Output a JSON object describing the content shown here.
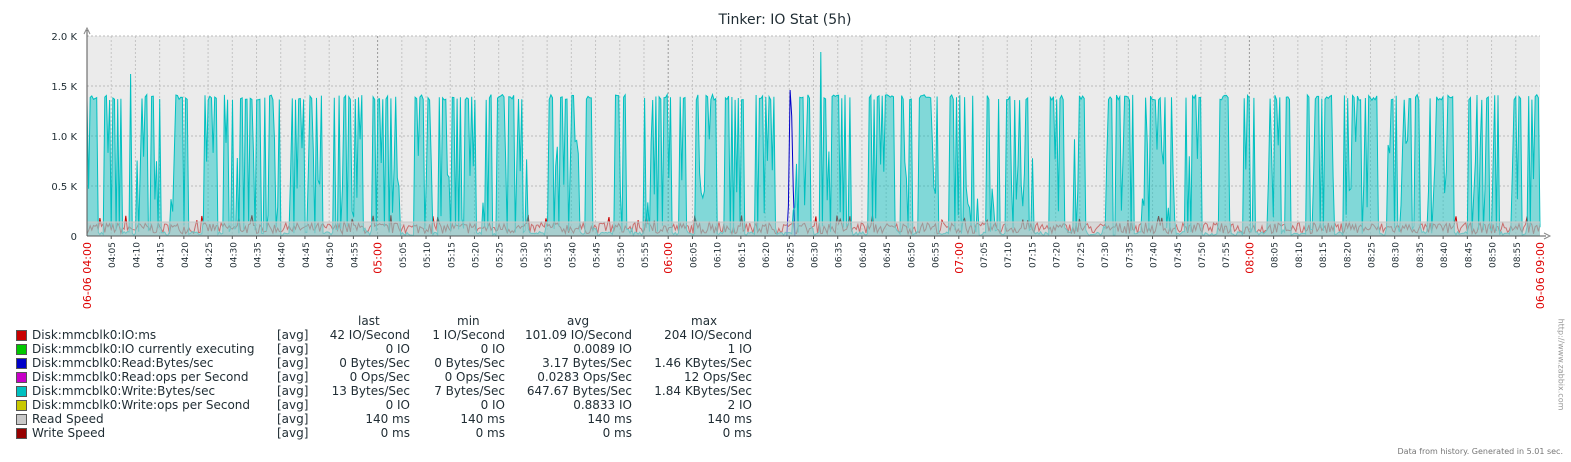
{
  "chart_data": {
    "type": "area",
    "title": "Tinker: IO Stat (5h)",
    "ylim": [
      0,
      2000
    ],
    "yticks": [
      "0",
      "0.5 K",
      "1.0 K",
      "1.5 K",
      "2.0 K"
    ],
    "x_start_label": "06-06 04:00",
    "x_end_label": "06-06 09:00",
    "xticks": [
      "04:05",
      "04:10",
      "04:15",
      "04:20",
      "04:25",
      "04:30",
      "04:35",
      "04:40",
      "04:45",
      "04:50",
      "04:55",
      "05:00",
      "05:05",
      "05:10",
      "05:15",
      "05:20",
      "05:25",
      "05:30",
      "05:35",
      "05:40",
      "05:45",
      "05:50",
      "05:55",
      "06:00",
      "06:05",
      "06:10",
      "06:15",
      "06:20",
      "06:25",
      "06:30",
      "06:35",
      "06:40",
      "06:45",
      "06:50",
      "06:55",
      "07:00",
      "07:05",
      "07:10",
      "07:15",
      "07:20",
      "07:25",
      "07:30",
      "07:35",
      "07:40",
      "07:45",
      "07:50",
      "07:55",
      "08:00",
      "08:05",
      "08:10",
      "08:15",
      "08:20",
      "08:25",
      "08:30",
      "08:35",
      "08:40",
      "08:45",
      "08:50",
      "08:55"
    ],
    "hour_ticks": [
      "05:00",
      "06:00",
      "07:00",
      "08:00"
    ],
    "series": [
      {
        "name": "Disk:mmcblk0:IO:ms",
        "color": "#c80000",
        "style": "line",
        "shape": "noise_low",
        "level": 110
      },
      {
        "name": "Disk:mmcblk0:IO currently executing",
        "color": "#00c800",
        "style": "line",
        "shape": "flat",
        "level": 0
      },
      {
        "name": "Disk:mmcblk0:Read:Bytes/sec",
        "color": "#0000c8",
        "style": "line",
        "shape": "spike",
        "peak": 1460,
        "at": "06:25"
      },
      {
        "name": "Disk:mmcblk0:Read:ops per Second",
        "color": "#c800c8",
        "style": "line",
        "shape": "flat",
        "level": 0
      },
      {
        "name": "Disk:mmcblk0:Write:Bytes/sec",
        "color": "#00c0c0",
        "style": "filled",
        "shape": "bursty",
        "typical_peak": 1400,
        "max": 1840
      },
      {
        "name": "Disk:mmcblk0:Write:ops per Second",
        "color": "#c8c800",
        "style": "line",
        "shape": "flat",
        "level": 0
      },
      {
        "name": "Read Speed",
        "color": "#c8c8c8",
        "style": "filled",
        "shape": "flat",
        "level": 140
      },
      {
        "name": "Write Speed",
        "color": "#960000",
        "style": "line",
        "shape": "flat",
        "level": 0
      }
    ]
  },
  "legend": {
    "headers": [
      "last",
      "min",
      "avg",
      "max"
    ],
    "rows": [
      {
        "name": "Disk:mmcblk0:IO:ms",
        "func": "[avg]",
        "last": "42 IO/Second",
        "min": "1 IO/Second",
        "avg": "101.09 IO/Second",
        "max": "204 IO/Second",
        "color": "#c80000"
      },
      {
        "name": "Disk:mmcblk0:IO currently executing",
        "func": "[avg]",
        "last": "0 IO",
        "min": "0 IO",
        "avg": "0.0089 IO",
        "max": "1 IO",
        "color": "#00c800"
      },
      {
        "name": "Disk:mmcblk0:Read:Bytes/sec",
        "func": "[avg]",
        "last": "0 Bytes/Sec",
        "min": "0 Bytes/Sec",
        "avg": "3.17 Bytes/Sec",
        "max": "1.46 KBytes/Sec",
        "color": "#0000c8"
      },
      {
        "name": "Disk:mmcblk0:Read:ops per Second",
        "func": "[avg]",
        "last": "0 Ops/Sec",
        "min": "0 Ops/Sec",
        "avg": "0.0283 Ops/Sec",
        "max": "12 Ops/Sec",
        "color": "#c800c8"
      },
      {
        "name": "Disk:mmcblk0:Write:Bytes/sec",
        "func": "[avg]",
        "last": "13 Bytes/Sec",
        "min": "7 Bytes/Sec",
        "avg": "647.67 Bytes/Sec",
        "max": "1.84 KBytes/Sec",
        "color": "#00c0c0"
      },
      {
        "name": "Disk:mmcblk0:Write:ops per Second",
        "func": "[avg]",
        "last": "0 IO",
        "min": "0 IO",
        "avg": "0.8833 IO",
        "max": "2 IO",
        "color": "#c8c800"
      },
      {
        "name": "Read Speed",
        "func": "[avg]",
        "last": "140 ms",
        "min": "140 ms",
        "avg": "140 ms",
        "max": "140 ms",
        "color": "#c8c8c8"
      },
      {
        "name": "Write Speed",
        "func": "[avg]",
        "last": "0 ms",
        "min": "0 ms",
        "avg": "0 ms",
        "max": "0 ms",
        "color": "#960000"
      }
    ]
  },
  "footer": "Data from history. Generated in 5.01 sec.",
  "watermark": "http://www.zabbix.com"
}
